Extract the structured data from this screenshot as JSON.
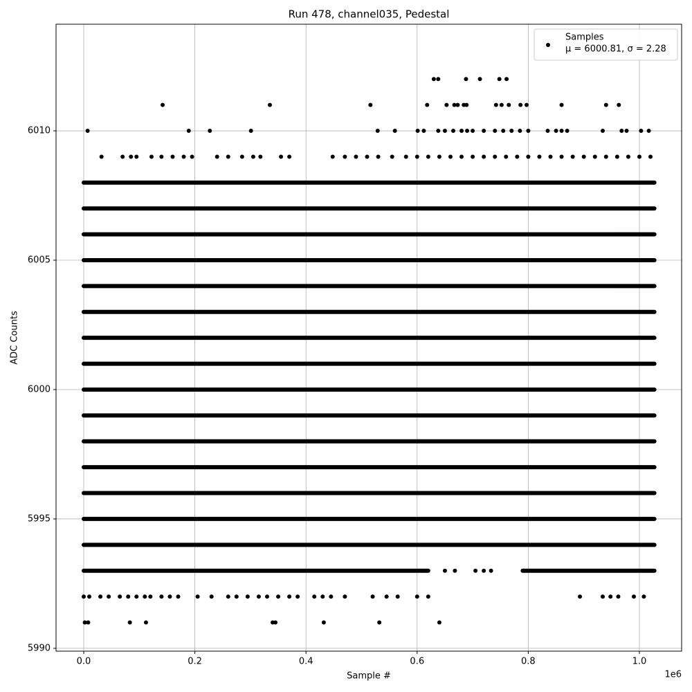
{
  "chart_data": {
    "type": "scatter",
    "title": "Run 478, channel035, Pedestal",
    "x_label": "Sample #",
    "y_label": "ADC Counts",
    "x_offset_label": "1e6",
    "xlim": [
      -49800,
      1076000
    ],
    "ylim": [
      5989.89,
      6014.12
    ],
    "xticks": [
      {
        "value": 0,
        "label": "0.0"
      },
      {
        "value": 200000,
        "label": "0.2"
      },
      {
        "value": 400000,
        "label": "0.4"
      },
      {
        "value": 600000,
        "label": "0.6"
      },
      {
        "value": 800000,
        "label": "0.8"
      },
      {
        "value": 1000000,
        "label": "1.0"
      }
    ],
    "yticks": [
      5990,
      5995,
      6000,
      6005,
      6010
    ],
    "grid": true,
    "legend": "upper right",
    "series": [
      {
        "name": "Samples",
        "legend_note": "μ = 6000.81, σ = 2.28",
        "color": "#000000",
        "rows": [
          {
            "y": 6008,
            "x": [
              0,
              1027000
            ]
          },
          {
            "y": 6007,
            "x": [
              0,
              1027000
            ]
          },
          {
            "y": 6006,
            "x": [
              0,
              1027000
            ]
          },
          {
            "y": 6005,
            "x": [
              0,
              1027000
            ]
          },
          {
            "y": 6004,
            "x": [
              0,
              1027000
            ]
          },
          {
            "y": 6003,
            "x": [
              0,
              1027000
            ]
          },
          {
            "y": 6002,
            "x": [
              0,
              1027000
            ]
          },
          {
            "y": 6001,
            "x": [
              0,
              1027000
            ]
          },
          {
            "y": 6000,
            "x": [
              0,
              1027000
            ]
          },
          {
            "y": 5999,
            "x": [
              0,
              1027000
            ]
          },
          {
            "y": 5998,
            "x": [
              0,
              1027000
            ]
          },
          {
            "y": 5997,
            "x": [
              0,
              1027000
            ]
          },
          {
            "y": 5996,
            "x": [
              0,
              1027000
            ]
          },
          {
            "y": 5995,
            "x": [
              0,
              1027000
            ]
          },
          {
            "y": 5994,
            "x": [
              0,
              1027000
            ]
          },
          {
            "y": 5993,
            "x": [
              0,
              620000
            ]
          },
          {
            "y": 5993,
            "x": [
              790000,
              1027000
            ]
          }
        ],
        "sparse": [
          {
            "y": 6012,
            "x": [
              630000,
              638000,
              688000,
              713000,
              748000,
              761000
            ]
          },
          {
            "y": 6011,
            "x": [
              142000,
              335000,
              516000,
              618000,
              653000,
              667000,
              673000,
              684000,
              689000,
              742000,
              752000,
              765000,
              786000,
              797000,
              860000,
              940000,
              963000
            ]
          },
          {
            "y": 6010,
            "x": [
              7000,
              189000,
              227000,
              301000,
              529000,
              560000,
              601000,
              612000,
              638000,
              650000,
              665000,
              680000,
              690000,
              700000,
              720000,
              740000,
              755000,
              770000,
              785000,
              800000,
              835000,
              850000,
              860000,
              870000,
              934000,
              968000,
              977000,
              1003000,
              1017000
            ]
          },
          {
            "y": 6009,
            "x": [
              32000,
              70000,
              85000,
              95000,
              122000,
              140000,
              160000,
              180000,
              195000,
              240000,
              260000,
              285000,
              305000,
              318000,
              355000,
              370000,
              448000,
              470000,
              490000,
              510000,
              530000,
              555000,
              580000,
              600000,
              620000,
              640000,
              660000,
              680000,
              700000,
              720000,
              740000,
              760000,
              780000,
              800000,
              820000,
              840000,
              860000,
              880000,
              900000,
              920000,
              940000,
              960000,
              980000,
              1000000,
              1020000
            ]
          },
          {
            "y": 5993,
            "x": [
              650000,
              668000,
              705000,
              720000,
              733000
            ]
          },
          {
            "y": 5992,
            "x": [
              0,
              10000,
              30000,
              45000,
              65000,
              80000,
              95000,
              110000,
              120000,
              140000,
              155000,
              170000,
              205000,
              230000,
              260000,
              275000,
              295000,
              315000,
              330000,
              350000,
              370000,
              385000,
              415000,
              430000,
              445000,
              470000,
              520000,
              545000,
              565000,
              600000,
              620000,
              893000,
              934000,
              948000,
              962000,
              990000,
              1008000
            ]
          },
          {
            "y": 5991,
            "x": [
              2000,
              8000,
              83000,
              112000,
              340000,
              345000,
              432000,
              532000,
              640000
            ]
          }
        ]
      }
    ]
  }
}
